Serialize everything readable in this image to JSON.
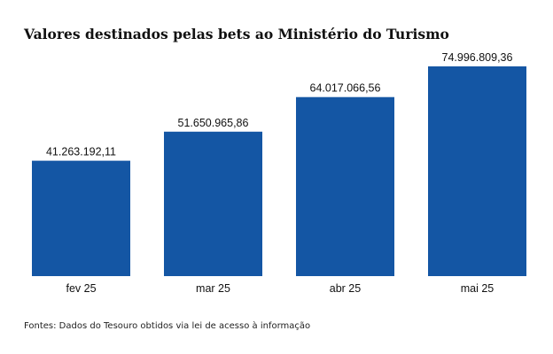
{
  "chart_data": {
    "type": "bar",
    "title": "Valores destinados pelas bets ao Ministério do Turismo",
    "categories": [
      "fev 25",
      "mar 25",
      "abr 25",
      "mai 25"
    ],
    "values": [
      41263192.11,
      51650965.86,
      64017066.56,
      74996809.36
    ],
    "value_labels": [
      "41.263.192,11",
      "51.650.965,86",
      "64.017.066,56",
      "74.996.809,36"
    ],
    "xlabel": "",
    "ylabel": "",
    "ylim": [
      0,
      75000000
    ],
    "grid": false,
    "legend": "none",
    "bar_color": "#1456a4",
    "source": "Fontes: Dados do Tesouro obtidos via lei de acesso à informação"
  }
}
